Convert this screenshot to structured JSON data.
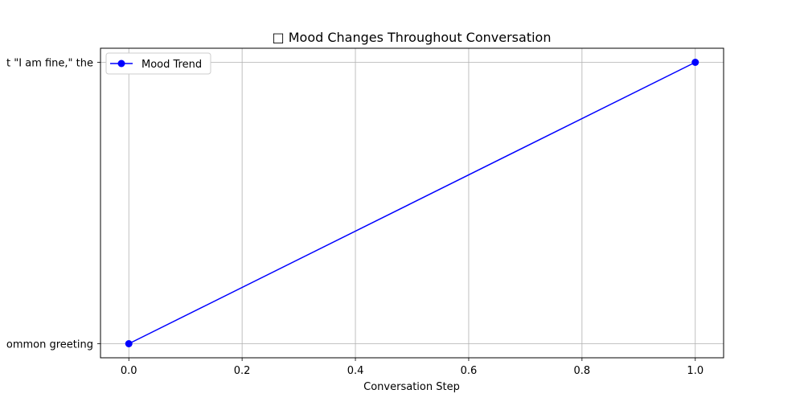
{
  "chart_data": {
    "type": "line",
    "title": "□ Mood Changes Throughout Conversation",
    "xlabel": "Conversation Step",
    "ylabel": "",
    "xlim": [
      -0.05,
      1.05
    ],
    "x_ticks": [
      0.0,
      0.2,
      0.4,
      0.6,
      0.8,
      1.0
    ],
    "x_tick_labels": [
      "0.0",
      "0.2",
      "0.4",
      "0.6",
      "0.8",
      "1.0"
    ],
    "y_categories": [
      "ommon greeting",
      "t \"I am fine,\" the"
    ],
    "grid": true,
    "legend_position": "top-left",
    "series": [
      {
        "name": "Mood Trend",
        "color": "#0000ff",
        "marker": "circle",
        "x": [
          0,
          1
        ],
        "y": [
          "ommon greeting",
          "t \"I am fine,\" the"
        ]
      }
    ]
  }
}
